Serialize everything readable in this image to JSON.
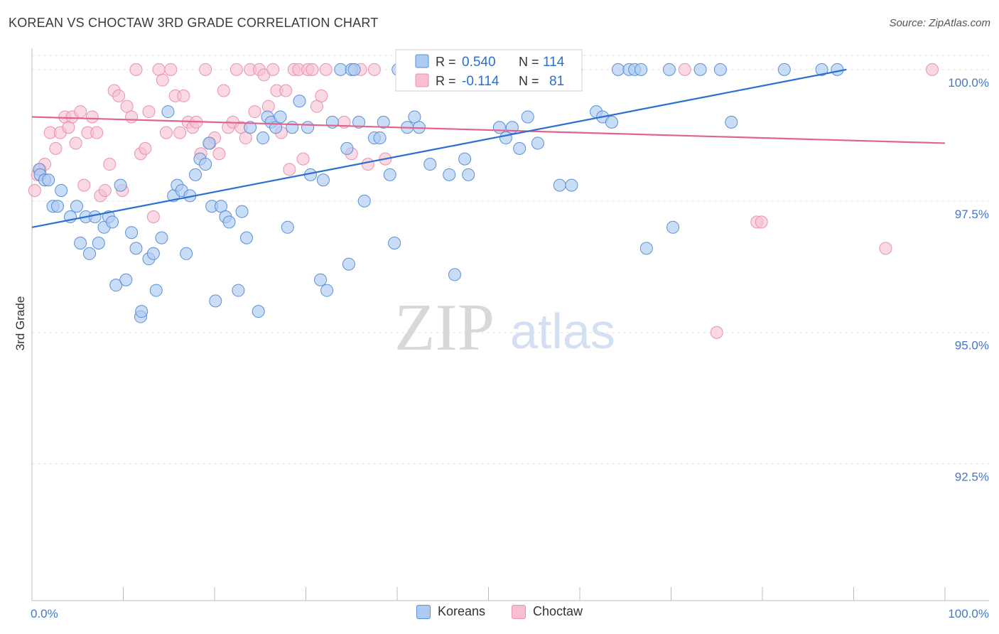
{
  "header": {
    "title": "KOREAN VS CHOCTAW 3RD GRADE CORRELATION CHART",
    "source": "Source: ZipAtlas.com"
  },
  "watermark": {
    "zip": "ZIP",
    "atlas": "atlas"
  },
  "colors": {
    "korean_fill": "#aecbf2",
    "korean_stroke": "#5b8fd6",
    "korean_line": "#2a6fd1",
    "choctaw_fill": "#f7bfd0",
    "choctaw_stroke": "#e892ae",
    "choctaw_line": "#e0648e",
    "tick_label": "#4677c8",
    "grid": "#e3e3e3"
  },
  "stats_box": {
    "rows": [
      {
        "r_label": "R =",
        "r_value": "0.540",
        "n_label": "N =",
        "n_value": "114"
      },
      {
        "r_label": "R =",
        "r_value": "-0.114",
        "n_label": "N =",
        "n_value": "81"
      }
    ]
  },
  "legend": {
    "items": [
      "Koreans",
      "Choctaw"
    ]
  },
  "chart_data": {
    "type": "scatter",
    "title": "KOREAN VS CHOCTAW 3RD GRADE CORRELATION CHART",
    "xlabel": "",
    "ylabel": "3rd Grade",
    "xlim": [
      0,
      100
    ],
    "ylim": [
      89.9,
      100.35
    ],
    "x_tick_labels": [
      "0.0%",
      "100.0%"
    ],
    "y_ticks": [
      100.0,
      97.5,
      95.0,
      92.5
    ],
    "y_tick_labels": [
      "100.0%",
      "97.5%",
      "95.0%",
      "92.5%"
    ],
    "grid": "horizontal dashed",
    "legend_position": "bottom-center",
    "series": [
      {
        "name": "Koreans",
        "r": 0.54,
        "n": 114,
        "trend": {
          "x": [
            0,
            89.2
          ],
          "y": [
            97.0,
            100.0
          ]
        },
        "points": [
          [
            0.8,
            98.1
          ],
          [
            0.9,
            98.0
          ],
          [
            1.4,
            97.9
          ],
          [
            1.8,
            97.9
          ],
          [
            2.3,
            97.4
          ],
          [
            2.8,
            97.4
          ],
          [
            3.2,
            97.7
          ],
          [
            4.2,
            97.2
          ],
          [
            4.9,
            97.4
          ],
          [
            5.3,
            96.7
          ],
          [
            5.9,
            97.2
          ],
          [
            6.3,
            96.5
          ],
          [
            6.9,
            97.2
          ],
          [
            7.3,
            96.7
          ],
          [
            7.9,
            97.0
          ],
          [
            8.4,
            97.2
          ],
          [
            8.8,
            97.1
          ],
          [
            9.2,
            95.9
          ],
          [
            9.7,
            97.8
          ],
          [
            10.3,
            96.0
          ],
          [
            10.9,
            96.9
          ],
          [
            11.4,
            96.6
          ],
          [
            11.9,
            95.3
          ],
          [
            12.0,
            95.4
          ],
          [
            12.8,
            96.4
          ],
          [
            13.3,
            96.5
          ],
          [
            13.6,
            95.8
          ],
          [
            14.2,
            96.8
          ],
          [
            14.9,
            99.2
          ],
          [
            15.5,
            97.6
          ],
          [
            15.9,
            97.8
          ],
          [
            16.4,
            97.7
          ],
          [
            16.9,
            96.5
          ],
          [
            17.3,
            97.6
          ],
          [
            17.9,
            98.0
          ],
          [
            18.4,
            98.3
          ],
          [
            19.0,
            98.2
          ],
          [
            19.4,
            98.6
          ],
          [
            19.7,
            97.4
          ],
          [
            20.1,
            95.6
          ],
          [
            20.7,
            97.4
          ],
          [
            21.2,
            97.2
          ],
          [
            21.6,
            97.1
          ],
          [
            22.6,
            95.8
          ],
          [
            23.0,
            97.3
          ],
          [
            23.5,
            96.8
          ],
          [
            23.9,
            98.9
          ],
          [
            24.8,
            95.4
          ],
          [
            25.3,
            98.7
          ],
          [
            25.8,
            99.1
          ],
          [
            26.2,
            99.0
          ],
          [
            26.7,
            98.9
          ],
          [
            27.2,
            99.1
          ],
          [
            28.0,
            97.0
          ],
          [
            28.5,
            98.9
          ],
          [
            29.3,
            99.4
          ],
          [
            30.2,
            98.9
          ],
          [
            30.5,
            98.0
          ],
          [
            31.6,
            96.0
          ],
          [
            31.9,
            97.9
          ],
          [
            32.3,
            95.8
          ],
          [
            32.9,
            99.0
          ],
          [
            33.8,
            100.0
          ],
          [
            34.5,
            98.5
          ],
          [
            34.7,
            96.3
          ],
          [
            35.0,
            100.0
          ],
          [
            35.3,
            100.0
          ],
          [
            35.8,
            99.0
          ],
          [
            36.4,
            97.5
          ],
          [
            37.5,
            98.7
          ],
          [
            38.1,
            98.7
          ],
          [
            38.5,
            99.0
          ],
          [
            39.2,
            98.0
          ],
          [
            39.7,
            96.7
          ],
          [
            40.1,
            100.0
          ],
          [
            41.1,
            98.9
          ],
          [
            41.9,
            99.1
          ],
          [
            42.4,
            98.9
          ],
          [
            43.6,
            98.2
          ],
          [
            45.7,
            98.0
          ],
          [
            46.3,
            96.1
          ],
          [
            47.4,
            98.3
          ],
          [
            47.8,
            98.0
          ],
          [
            48.5,
            100.0
          ],
          [
            49.1,
            100.0
          ],
          [
            49.6,
            100.0
          ],
          [
            50.3,
            100.0
          ],
          [
            51.2,
            98.9
          ],
          [
            51.9,
            98.7
          ],
          [
            52.6,
            98.9
          ],
          [
            53.4,
            98.5
          ],
          [
            54.3,
            99.1
          ],
          [
            55.4,
            98.6
          ],
          [
            56.5,
            100.0
          ],
          [
            56.9,
            100.0
          ],
          [
            57.8,
            97.8
          ],
          [
            59.1,
            97.8
          ],
          [
            59.6,
            100.0
          ],
          [
            61.8,
            99.2
          ],
          [
            62.5,
            99.1
          ],
          [
            63.5,
            99.0
          ],
          [
            64.2,
            100.0
          ],
          [
            65.4,
            100.0
          ],
          [
            66.0,
            100.0
          ],
          [
            66.7,
            100.0
          ],
          [
            67.3,
            96.6
          ],
          [
            69.8,
            100.0
          ],
          [
            70.2,
            97.0
          ],
          [
            73.2,
            100.0
          ],
          [
            75.4,
            100.0
          ],
          [
            76.6,
            99.0
          ],
          [
            82.4,
            100.0
          ],
          [
            86.5,
            100.0
          ],
          [
            88.2,
            100.0
          ]
        ]
      },
      {
        "name": "Choctaw",
        "r": -0.114,
        "n": 81,
        "trend": {
          "x": [
            0,
            100
          ],
          "y": [
            99.1,
            98.6
          ]
        },
        "points": [
          [
            0.3,
            97.7
          ],
          [
            0.6,
            98.0
          ],
          [
            0.9,
            98.1
          ],
          [
            1.4,
            98.2
          ],
          [
            2.0,
            98.8
          ],
          [
            2.6,
            98.5
          ],
          [
            3.1,
            98.8
          ],
          [
            3.6,
            99.1
          ],
          [
            4.0,
            98.9
          ],
          [
            4.4,
            99.1
          ],
          [
            4.8,
            98.6
          ],
          [
            5.3,
            99.2
          ],
          [
            5.7,
            97.8
          ],
          [
            6.1,
            98.8
          ],
          [
            6.6,
            99.1
          ],
          [
            7.1,
            98.8
          ],
          [
            7.5,
            97.6
          ],
          [
            8.0,
            97.7
          ],
          [
            8.5,
            98.2
          ],
          [
            9.0,
            99.6
          ],
          [
            9.5,
            99.5
          ],
          [
            9.9,
            97.7
          ],
          [
            10.4,
            99.3
          ],
          [
            10.9,
            99.1
          ],
          [
            11.4,
            100.0
          ],
          [
            11.9,
            98.4
          ],
          [
            12.4,
            98.5
          ],
          [
            12.8,
            99.2
          ],
          [
            13.3,
            97.2
          ],
          [
            13.9,
            100.0
          ],
          [
            14.3,
            99.8
          ],
          [
            14.7,
            98.8
          ],
          [
            15.2,
            100.0
          ],
          [
            15.7,
            99.5
          ],
          [
            16.2,
            98.8
          ],
          [
            16.6,
            99.5
          ],
          [
            17.1,
            99.0
          ],
          [
            17.6,
            98.9
          ],
          [
            18.0,
            99.0
          ],
          [
            18.5,
            98.4
          ],
          [
            19.0,
            100.0
          ],
          [
            19.5,
            98.6
          ],
          [
            20.0,
            98.7
          ],
          [
            20.5,
            98.4
          ],
          [
            21.0,
            99.6
          ],
          [
            21.5,
            98.9
          ],
          [
            22.0,
            99.0
          ],
          [
            22.4,
            100.0
          ],
          [
            22.9,
            98.9
          ],
          [
            23.4,
            98.7
          ],
          [
            23.9,
            100.0
          ],
          [
            24.4,
            99.2
          ],
          [
            24.9,
            100.0
          ],
          [
            25.4,
            99.9
          ],
          [
            25.9,
            99.3
          ],
          [
            26.4,
            100.0
          ],
          [
            26.8,
            99.6
          ],
          [
            27.3,
            98.8
          ],
          [
            27.8,
            99.6
          ],
          [
            28.2,
            98.1
          ],
          [
            28.7,
            100.0
          ],
          [
            29.2,
            100.0
          ],
          [
            29.7,
            98.3
          ],
          [
            30.2,
            100.0
          ],
          [
            30.7,
            100.0
          ],
          [
            31.2,
            99.3
          ],
          [
            31.7,
            99.5
          ],
          [
            32.2,
            100.0
          ],
          [
            34.2,
            99.0
          ],
          [
            35.0,
            98.4
          ],
          [
            36.0,
            100.0
          ],
          [
            36.8,
            98.2
          ],
          [
            37.5,
            100.0
          ],
          [
            38.7,
            98.3
          ],
          [
            48.5,
            100.0
          ],
          [
            56.3,
            100.0
          ],
          [
            71.5,
            100.0
          ],
          [
            75.0,
            95.0
          ],
          [
            79.4,
            97.1
          ],
          [
            79.9,
            97.1
          ],
          [
            93.5,
            96.6
          ],
          [
            98.6,
            100.0
          ]
        ]
      }
    ]
  }
}
